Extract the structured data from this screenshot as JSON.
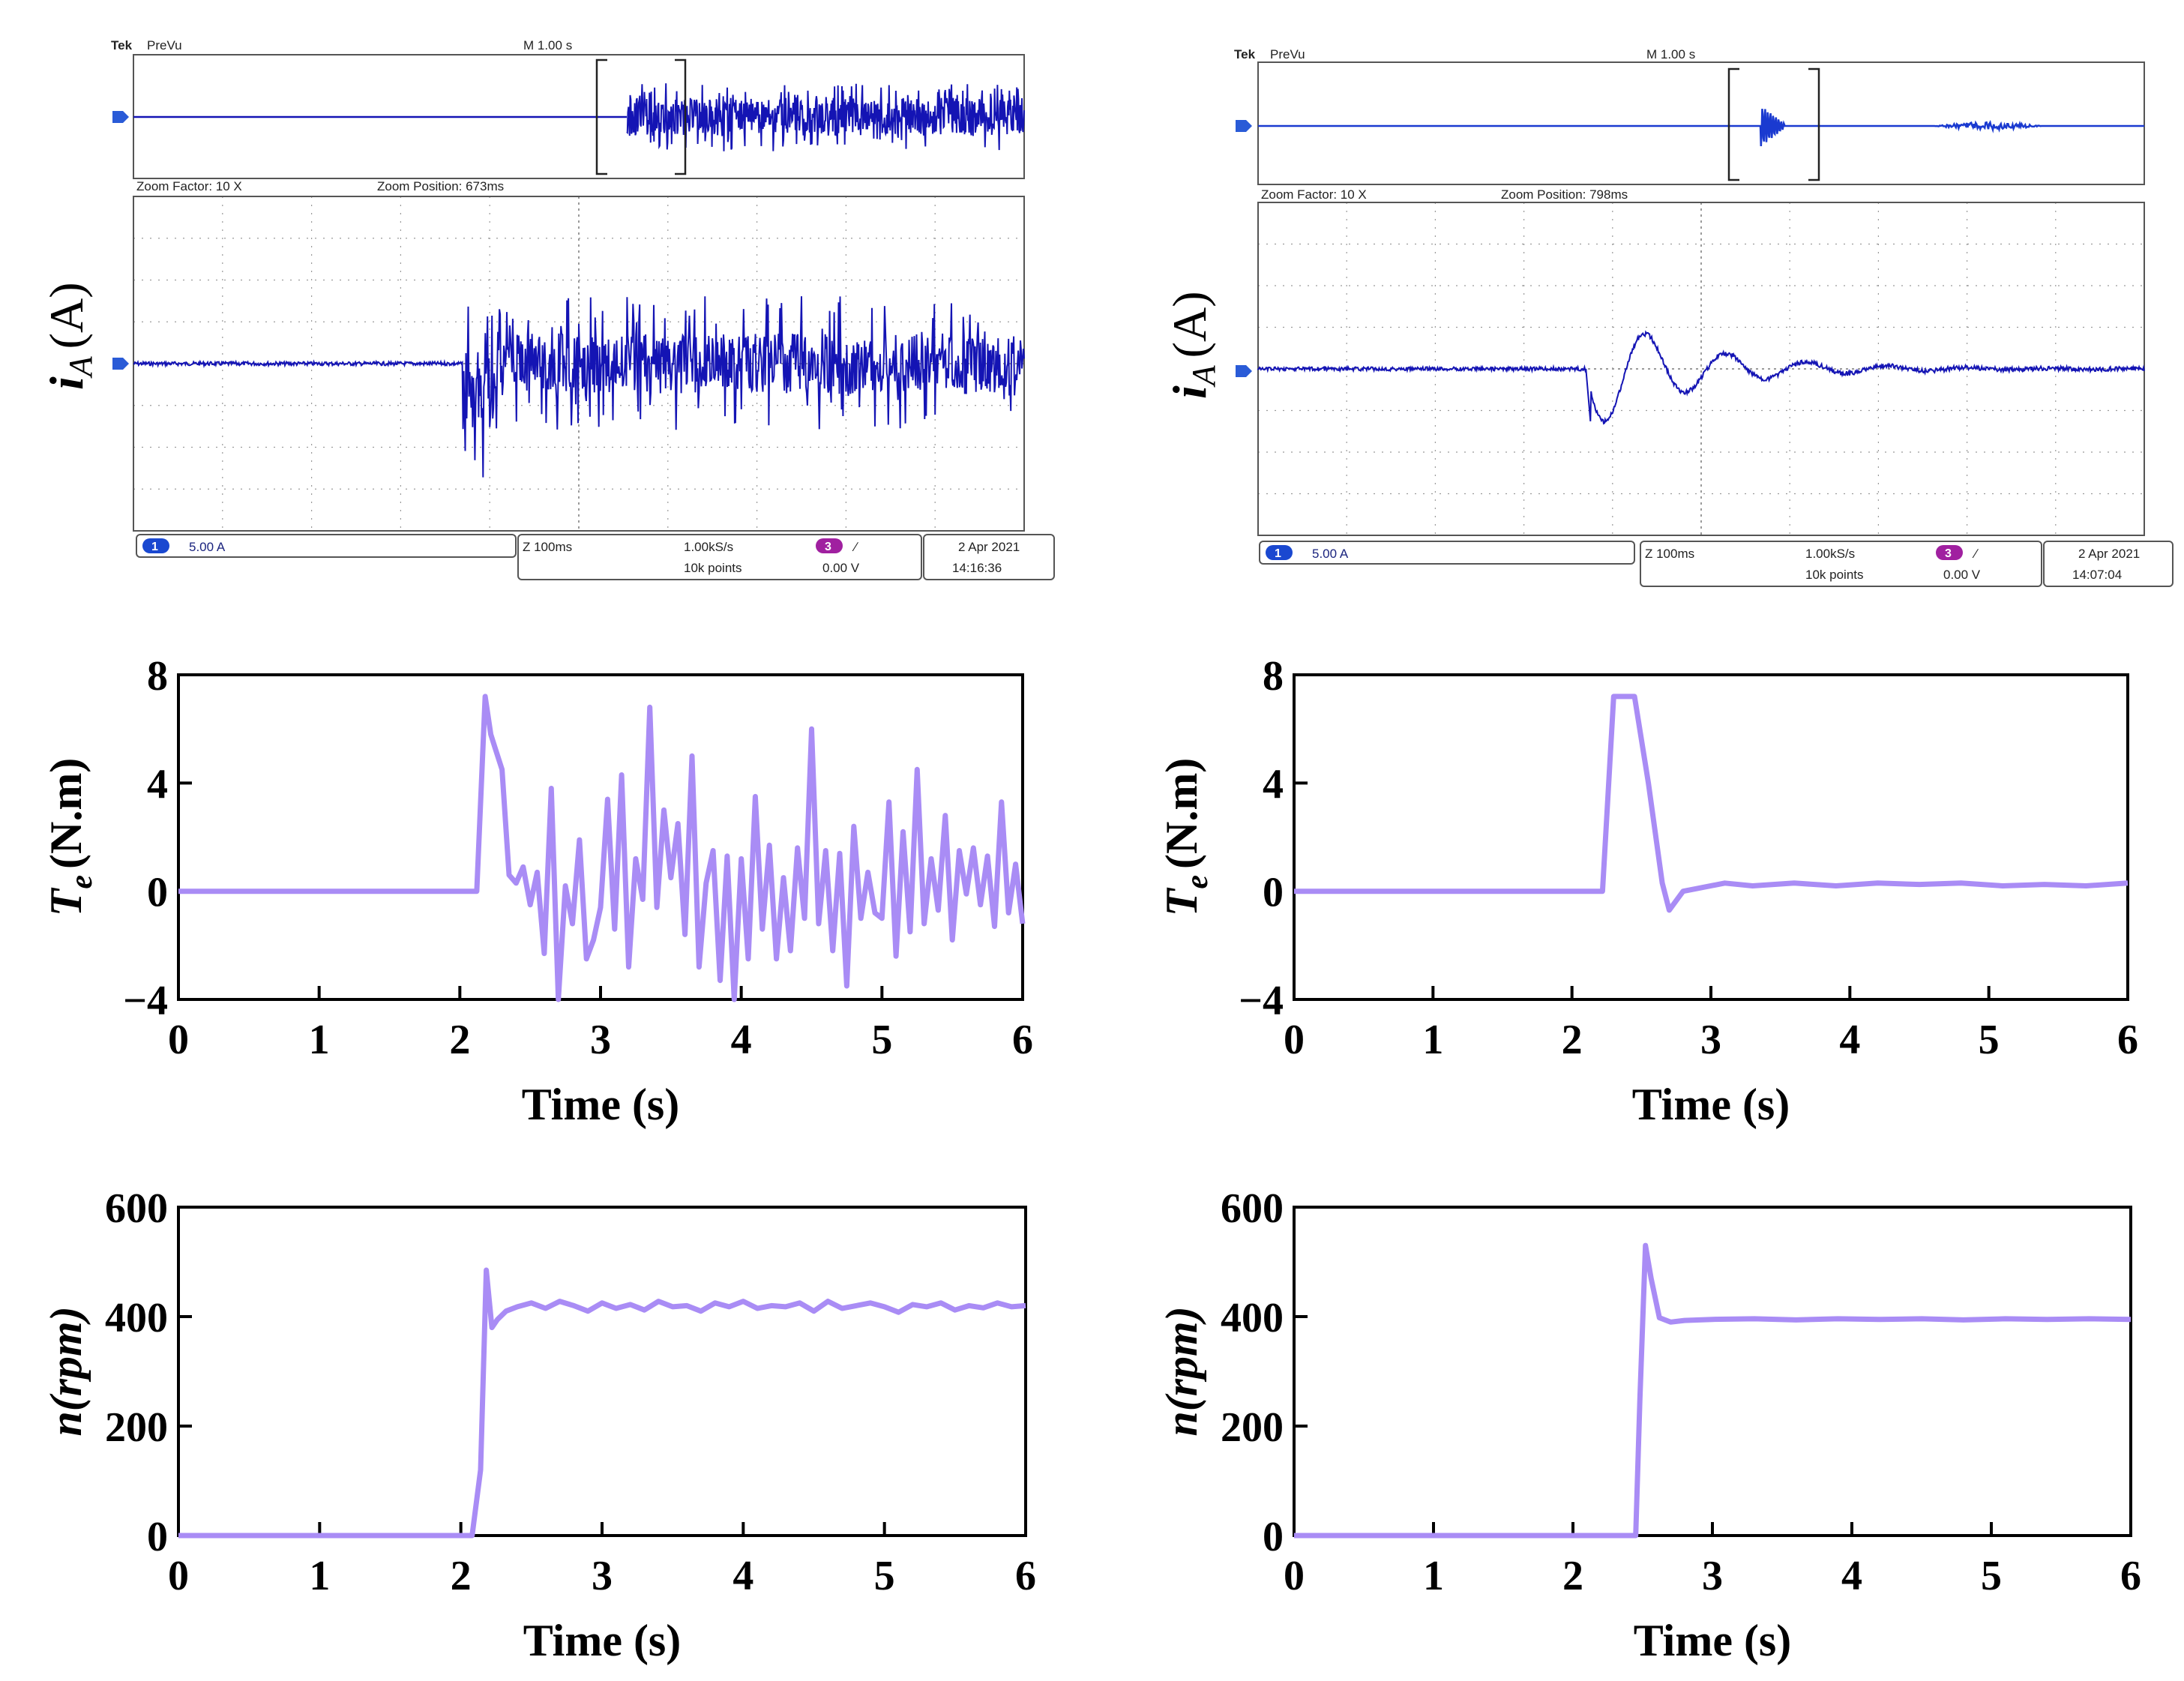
{
  "colors": {
    "scope_trace": "#1414b4",
    "plot_line": "#a98cf5",
    "scope_grid": "#9a9a9a",
    "scope_marker": "#2a5bd7",
    "trigger_badge": "#a020a0",
    "trigger_arrow": "#e08a00"
  },
  "scopes": [
    {
      "id": "left",
      "brand": "Tek",
      "mode": "PreVu",
      "timebase": "M 1.00 s",
      "zoom_factor": "Zoom Factor: 10 X",
      "zoom_position": "Zoom Position: 673ms",
      "ylabel_main": "i",
      "ylabel_sub": "A",
      "ylabel_unit": "(A)",
      "channel_number": "1",
      "channel_scale": "5.00 A",
      "zoom_time": "Z 100ms",
      "sample_rate": "1.00kS/s",
      "record_length": "10k points",
      "trigger_channel": "3",
      "trigger_slope": "∕",
      "trigger_level": "0.00 V",
      "date": "2 Apr  2021",
      "time": "14:16:36",
      "trace": {
        "onset_division": 3.7,
        "pattern": "noisy",
        "amplitude_divisions": 1.9
      }
    },
    {
      "id": "right",
      "brand": "Tek",
      "mode": "PreVu",
      "timebase": "M 1.00 s",
      "zoom_factor": "Zoom Factor: 10 X",
      "zoom_position": "Zoom Position: 798ms",
      "ylabel_main": "i",
      "ylabel_sub": "A",
      "ylabel_unit": "(A)",
      "channel_number": "1",
      "channel_scale": "5.00 A",
      "zoom_time": "Z 100ms",
      "sample_rate": "1.00kS/s",
      "record_length": "10k points",
      "trigger_channel": "3",
      "trigger_slope": "∕",
      "trigger_level": "0.00 V",
      "date": "2 Apr  2021",
      "time": "14:07:04",
      "trace": {
        "onset_division": 3.7,
        "pattern": "damped",
        "amplitude_divisions": 1.4
      }
    }
  ],
  "chart_data": [
    {
      "id": "te-left",
      "type": "line",
      "ylabel_main": "T",
      "ylabel_sub": "e",
      "ylabel_unit": "(N.m)",
      "xlabel": "Time (s)",
      "xlim": [
        0,
        6
      ],
      "ylim": [
        -4,
        8
      ],
      "xticks": [
        0,
        1,
        2,
        3,
        4,
        5,
        6
      ],
      "yticks": [
        -4,
        0,
        4,
        8
      ],
      "xtick_labels": [
        "0",
        "1",
        "2",
        "3",
        "4",
        "5",
        "6"
      ],
      "ytick_labels": [
        "−4",
        "0",
        "4",
        "8"
      ],
      "series": [
        {
          "name": "Te",
          "x": [
            0,
            2.12,
            2.18,
            2.22,
            2.25,
            2.3,
            2.35,
            2.4,
            2.45,
            2.5,
            2.55,
            2.6,
            2.65,
            2.7,
            2.75,
            2.8,
            2.85,
            2.9,
            2.95,
            3.0,
            3.05,
            3.1,
            3.15,
            3.2,
            3.25,
            3.3,
            3.35,
            3.4,
            3.45,
            3.5,
            3.55,
            3.6,
            3.65,
            3.7,
            3.75,
            3.8,
            3.85,
            3.9,
            3.95,
            4.0,
            4.05,
            4.1,
            4.15,
            4.2,
            4.25,
            4.3,
            4.35,
            4.4,
            4.45,
            4.5,
            4.55,
            4.6,
            4.65,
            4.7,
            4.75,
            4.8,
            4.85,
            4.9,
            4.95,
            5.0,
            5.05,
            5.1,
            5.15,
            5.2,
            5.25,
            5.3,
            5.35,
            5.4,
            5.45,
            5.5,
            5.55,
            5.6,
            5.65,
            5.7,
            5.75,
            5.8,
            5.85,
            5.9,
            5.95,
            6.0
          ],
          "values": [
            0,
            0,
            7.2,
            5.8,
            5.3,
            4.5,
            0.6,
            0.3,
            0.9,
            -0.5,
            0.7,
            -2.3,
            3.8,
            -4.0,
            0.2,
            -1.2,
            1.9,
            -2.5,
            -1.8,
            -0.6,
            3.4,
            -1.4,
            4.3,
            -2.8,
            1.2,
            -0.3,
            6.8,
            -0.6,
            3.0,
            0.5,
            2.5,
            -1.6,
            5.0,
            -2.8,
            0.3,
            1.5,
            -3.3,
            1.3,
            -4.4,
            1.2,
            -2.5,
            3.5,
            -1.4,
            1.7,
            -2.5,
            0.5,
            -2.2,
            1.6,
            -1.0,
            6.0,
            -1.2,
            1.5,
            -2.2,
            1.4,
            -3.5,
            2.4,
            -1.0,
            0.7,
            -0.8,
            -1.0,
            3.3,
            -2.4,
            2.2,
            -1.5,
            4.5,
            -1.2,
            1.2,
            -0.7,
            2.8,
            -1.8,
            1.5,
            -0.1,
            1.6,
            -0.5,
            1.3,
            -1.3,
            3.3,
            -0.8,
            1.0,
            -1.2
          ]
        }
      ]
    },
    {
      "id": "te-right",
      "type": "line",
      "ylabel_main": "T",
      "ylabel_sub": "e",
      "ylabel_unit": "(N.m)",
      "xlabel": "Time (s)",
      "xlim": [
        0,
        6
      ],
      "ylim": [
        -4,
        8
      ],
      "xticks": [
        0,
        1,
        2,
        3,
        4,
        5,
        6
      ],
      "yticks": [
        -4,
        0,
        4,
        8
      ],
      "xtick_labels": [
        "0",
        "1",
        "2",
        "3",
        "4",
        "5",
        "6"
      ],
      "ytick_labels": [
        "−4",
        "0",
        "4",
        "8"
      ],
      "series": [
        {
          "name": "Te",
          "x": [
            0,
            2.22,
            2.3,
            2.45,
            2.55,
            2.65,
            2.7,
            2.8,
            2.9,
            3.1,
            3.3,
            3.6,
            3.9,
            4.2,
            4.5,
            4.8,
            5.1,
            5.4,
            5.7,
            6.0
          ],
          "values": [
            0,
            0,
            7.2,
            7.2,
            4.0,
            0.3,
            -0.7,
            0.0,
            0.1,
            0.3,
            0.2,
            0.3,
            0.2,
            0.3,
            0.25,
            0.3,
            0.2,
            0.25,
            0.2,
            0.3
          ]
        }
      ]
    },
    {
      "id": "n-left",
      "type": "line",
      "ylabel": "n(rpm)",
      "xlabel": "Time (s)",
      "xlim": [
        0,
        6
      ],
      "ylim": [
        0,
        600
      ],
      "xticks": [
        0,
        1,
        2,
        3,
        4,
        5,
        6
      ],
      "yticks": [
        0,
        200,
        400,
        600
      ],
      "xtick_labels": [
        "0",
        "1",
        "2",
        "3",
        "4",
        "5",
        "6"
      ],
      "ytick_labels": [
        "0",
        "200",
        "400",
        "600"
      ],
      "series": [
        {
          "name": "n",
          "x": [
            0,
            2.08,
            2.14,
            2.18,
            2.22,
            2.26,
            2.32,
            2.4,
            2.5,
            2.6,
            2.7,
            2.8,
            2.9,
            3.0,
            3.1,
            3.2,
            3.3,
            3.4,
            3.5,
            3.6,
            3.7,
            3.8,
            3.9,
            4.0,
            4.1,
            4.2,
            4.3,
            4.4,
            4.5,
            4.6,
            4.7,
            4.8,
            4.9,
            5.0,
            5.1,
            5.2,
            5.3,
            5.4,
            5.5,
            5.6,
            5.7,
            5.8,
            5.9,
            6.0
          ],
          "values": [
            0,
            0,
            120,
            485,
            380,
            395,
            410,
            418,
            425,
            415,
            428,
            420,
            410,
            425,
            415,
            422,
            412,
            428,
            418,
            420,
            410,
            425,
            418,
            428,
            415,
            420,
            418,
            425,
            410,
            428,
            415,
            420,
            425,
            418,
            408,
            422,
            418,
            425,
            412,
            420,
            416,
            425,
            418,
            420
          ]
        }
      ]
    },
    {
      "id": "n-right",
      "type": "line",
      "ylabel": "n(rpm)",
      "xlabel": "Time (s)",
      "xlim": [
        0,
        6
      ],
      "ylim": [
        0,
        600
      ],
      "xticks": [
        0,
        1,
        2,
        3,
        4,
        5,
        6
      ],
      "yticks": [
        0,
        200,
        400,
        600
      ],
      "xtick_labels": [
        "0",
        "1",
        "2",
        "3",
        "4",
        "5",
        "6"
      ],
      "ytick_labels": [
        "0",
        "200",
        "400",
        "600"
      ],
      "series": [
        {
          "name": "n",
          "x": [
            0,
            2.45,
            2.48,
            2.52,
            2.56,
            2.62,
            2.7,
            2.8,
            3.0,
            3.3,
            3.6,
            3.9,
            4.2,
            4.5,
            4.8,
            5.1,
            5.4,
            5.7,
            6.0
          ],
          "values": [
            0,
            0,
            250,
            530,
            470,
            398,
            390,
            393,
            395,
            396,
            394,
            396,
            395,
            396,
            394,
            396,
            395,
            396,
            395
          ]
        }
      ]
    }
  ]
}
